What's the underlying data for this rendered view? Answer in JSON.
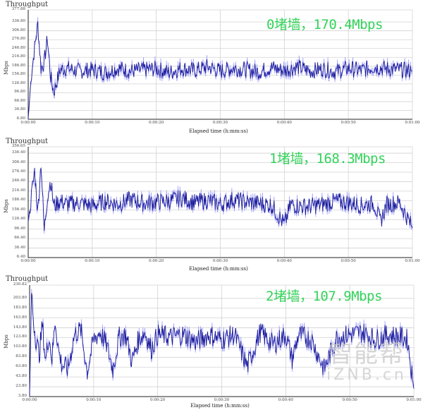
{
  "chart_data": [
    {
      "type": "line",
      "title": "Throughput",
      "annotation": "0堵墙，170.4Mbps",
      "xlabel": "Elapsed time (h:mm:ss)",
      "ylabel": "Mbps",
      "x_ticks": [
        "0:00:00",
        "0:00:10",
        "0:00:20",
        "0:00:30",
        "0:00:40",
        "0:00:50",
        "0:01:00"
      ],
      "y_ticks": [
        "6.80",
        "36.80",
        "66.80",
        "96.80",
        "126.80",
        "156.80",
        "186.80",
        "216.80",
        "246.80",
        "276.80",
        "306.80",
        "336.80",
        "377.88"
      ],
      "ylim": [
        6.8,
        377.88
      ],
      "xlim_seconds": [
        0,
        60
      ],
      "grid": true,
      "average_mbps": 170.4,
      "series": [
        {
          "name": "Throughput",
          "x_seconds": [
            0,
            0.5,
            1,
            1.5,
            2,
            2.5,
            3,
            3.5,
            4,
            5,
            6,
            8,
            10,
            12,
            14,
            16,
            18,
            20,
            22,
            24,
            26,
            28,
            30,
            32,
            34,
            36,
            38,
            40,
            42,
            44,
            46,
            48,
            50,
            52,
            54,
            56,
            58,
            60
          ],
          "values": [
            10,
            160,
            250,
            330,
            180,
            200,
            280,
            150,
            100,
            175,
            180,
            170,
            175,
            165,
            180,
            170,
            175,
            178,
            165,
            180,
            172,
            185,
            170,
            180,
            175,
            168,
            182,
            172,
            185,
            170,
            178,
            168,
            180,
            172,
            185,
            178,
            175,
            170
          ]
        }
      ]
    },
    {
      "type": "line",
      "title": "Throughput",
      "annotation": "1堵墙，168.3Mbps",
      "xlabel": "Elapsed time (h:mm:ss)",
      "ylabel": "Mbps",
      "x_ticks": [
        "0:00:00",
        "0:00:10",
        "0:00:20",
        "0:00:30",
        "0:00:40",
        "0:00:50",
        "0:01:00"
      ],
      "y_ticks": [
        "6.40",
        "36.40",
        "66.40",
        "96.40",
        "126.40",
        "156.40",
        "186.40",
        "216.40",
        "246.40",
        "276.40",
        "306.40",
        "336.40",
        "356.65"
      ],
      "ylim": [
        6.4,
        356.65
      ],
      "xlim_seconds": [
        0,
        60
      ],
      "grid": true,
      "average_mbps": 168.3,
      "series": [
        {
          "name": "Throughput",
          "x_seconds": [
            0,
            0.5,
            1,
            1.5,
            2,
            2.5,
            3,
            3.5,
            4,
            5,
            6,
            8,
            10,
            12,
            14,
            16,
            18,
            20,
            22,
            24,
            26,
            28,
            30,
            32,
            34,
            36,
            38,
            40,
            41,
            42,
            44,
            46,
            48,
            50,
            52,
            54,
            55,
            56,
            58,
            60
          ],
          "values": [
            120,
            200,
            280,
            150,
            310,
            90,
            200,
            250,
            170,
            185,
            175,
            180,
            170,
            185,
            175,
            190,
            178,
            182,
            185,
            195,
            180,
            188,
            175,
            190,
            182,
            178,
            172,
            110,
            175,
            170,
            168,
            175,
            185,
            180,
            172,
            178,
            120,
            175,
            180,
            100
          ]
        }
      ]
    },
    {
      "type": "line",
      "title": "Throughput",
      "annotation": "2堵墙，107.9Mbps",
      "xlabel": "Elapsed time (h:mm:ss)",
      "ylabel": "Mbps",
      "x_ticks": [
        "0:00:00",
        "0:00:10",
        "0:00:20",
        "0:00:30",
        "0:00:40",
        "0:00:50",
        "0:01:00"
      ],
      "y_ticks": [
        "3.80",
        "23.80",
        "43.80",
        "63.80",
        "83.80",
        "103.80",
        "123.80",
        "143.80",
        "163.80",
        "183.80",
        "203.80",
        "230.82"
      ],
      "ylim": [
        3.8,
        230.82
      ],
      "xlim_seconds": [
        0,
        60
      ],
      "grid": true,
      "average_mbps": 107.9,
      "series": [
        {
          "name": "Throughput",
          "x_seconds": [
            0,
            0.3,
            0.6,
            1,
            1.5,
            2,
            2.5,
            3,
            3.5,
            4,
            4.5,
            5,
            6,
            7,
            8,
            9,
            10,
            11,
            12,
            13,
            14,
            15,
            16,
            17,
            18,
            19,
            20,
            22,
            24,
            26,
            28,
            30,
            32,
            34,
            36,
            38,
            40,
            41,
            42,
            44,
            46,
            48,
            50,
            52,
            54,
            56,
            58,
            59,
            59.5,
            60
          ],
          "values": [
            5,
            220,
            160,
            120,
            90,
            150,
            75,
            130,
            80,
            160,
            100,
            70,
            60,
            130,
            140,
            55,
            120,
            135,
            110,
            60,
            125,
            130,
            75,
            120,
            135,
            100,
            130,
            125,
            130,
            115,
            130,
            120,
            130,
            65,
            135,
            110,
            130,
            80,
            130,
            120,
            60,
            125,
            130,
            135,
            120,
            130,
            125,
            120,
            70,
            20
          ]
        }
      ]
    }
  ],
  "watermark": {
    "chinese": "智能帮",
    "latin": "iZNB.cn"
  },
  "colors": {
    "line_dark": "#1a1a9a",
    "line_light": "#8c8cff",
    "annotation": "#33d25a",
    "grid": "#d3d3d3",
    "axis": "#222222"
  }
}
